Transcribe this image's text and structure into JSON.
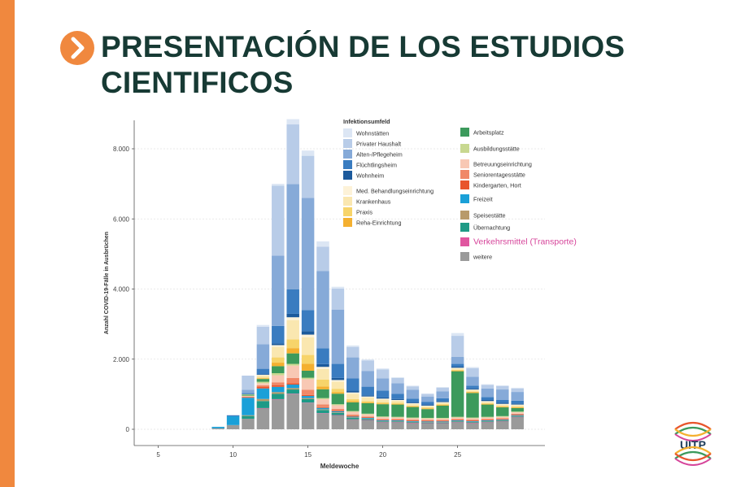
{
  "slide": {
    "title_line1": "PRESENTACIÓN DE LOS ESTUDIOS",
    "title_line2": "CIENTIFICOS",
    "logo_text": "UITP",
    "accent_color": "#f0883e",
    "title_color": "#173a34"
  },
  "chart_data": {
    "type": "bar",
    "stacked": true,
    "title": "",
    "xlabel": "Meldewoche",
    "ylabel": "Anzahl COVID-19-Fälle in Ausbrüchen",
    "ylim": [
      0,
      8500
    ],
    "xlim": [
      3.5,
      30
    ],
    "x_ticks": [
      "5",
      "10",
      "15",
      "20",
      "25"
    ],
    "y_ticks": [
      "0",
      "2.000",
      "4.000",
      "6.000",
      "8.000"
    ],
    "legend_placement": "inside-top",
    "legend_header": "Infektionsumfeld",
    "categories": [
      5,
      6,
      7,
      8,
      9,
      10,
      11,
      12,
      13,
      14,
      15,
      16,
      17,
      18,
      19,
      20,
      21,
      22,
      23,
      24,
      25,
      26,
      27,
      28,
      29
    ],
    "series": [
      {
        "name": "weitere",
        "color": "#9a9a9a",
        "values": [
          0,
          0,
          0,
          0,
          30,
          120,
          300,
          600,
          850,
          1000,
          750,
          450,
          400,
          280,
          260,
          200,
          200,
          180,
          170,
          170,
          200,
          180,
          200,
          220,
          350
        ]
      },
      {
        "name": "Verkehrsmittel (Transporte)",
        "color": "#e056a0",
        "values": [
          0,
          0,
          0,
          0,
          0,
          0,
          0,
          5,
          10,
          15,
          10,
          10,
          5,
          5,
          5,
          5,
          5,
          5,
          5,
          5,
          5,
          5,
          5,
          5,
          5
        ]
      },
      {
        "name": "Übernachtung",
        "color": "#1e9a86",
        "values": [
          0,
          0,
          0,
          0,
          0,
          0,
          80,
          200,
          150,
          120,
          100,
          90,
          60,
          40,
          30,
          20,
          20,
          20,
          20,
          20,
          20,
          20,
          20,
          20,
          20
        ]
      },
      {
        "name": "Speisestätte",
        "color": "#b89a6a",
        "values": [
          0,
          0,
          0,
          0,
          0,
          0,
          20,
          60,
          50,
          40,
          30,
          20,
          20,
          15,
          10,
          10,
          10,
          10,
          10,
          10,
          10,
          10,
          10,
          10,
          10
        ]
      },
      {
        "name": "Freizeit",
        "color": "#1aa0d8",
        "values": [
          0,
          0,
          0,
          0,
          40,
          250,
          500,
          300,
          150,
          100,
          60,
          40,
          30,
          20,
          20,
          20,
          20,
          20,
          20,
          20,
          20,
          20,
          20,
          20,
          20
        ]
      },
      {
        "name": "Kindergarten, Hort",
        "color": "#e8552c",
        "values": [
          0,
          0,
          0,
          0,
          0,
          0,
          20,
          50,
          50,
          40,
          30,
          20,
          20,
          20,
          20,
          20,
          20,
          20,
          20,
          20,
          20,
          20,
          20,
          20,
          20
        ]
      },
      {
        "name": "Seniorentagesstätte",
        "color": "#f08868",
        "values": [
          0,
          0,
          0,
          0,
          0,
          0,
          10,
          40,
          80,
          150,
          150,
          80,
          50,
          40,
          20,
          20,
          20,
          20,
          20,
          20,
          20,
          20,
          20,
          20,
          20
        ]
      },
      {
        "name": "Betreuungseinrichtung",
        "color": "#f8c8b4",
        "values": [
          0,
          0,
          0,
          0,
          0,
          0,
          20,
          60,
          200,
          350,
          300,
          150,
          100,
          80,
          60,
          50,
          40,
          40,
          40,
          40,
          40,
          40,
          40,
          40,
          40
        ]
      },
      {
        "name": "Ausbildungsstätte",
        "color": "#c8d890",
        "values": [
          0,
          0,
          0,
          0,
          0,
          0,
          10,
          40,
          60,
          50,
          40,
          30,
          30,
          20,
          20,
          20,
          20,
          20,
          20,
          20,
          20,
          20,
          20,
          20,
          20
        ]
      },
      {
        "name": "Arbeitsplatz",
        "color": "#3c9a5c",
        "values": [
          0,
          0,
          0,
          0,
          0,
          0,
          30,
          80,
          200,
          300,
          200,
          250,
          300,
          250,
          300,
          350,
          350,
          300,
          250,
          350,
          1300,
          700,
          350,
          250,
          100
        ]
      },
      {
        "name": "Reha-Einrichtung",
        "color": "#f4b030",
        "values": [
          0,
          0,
          0,
          0,
          0,
          0,
          0,
          20,
          100,
          150,
          200,
          80,
          40,
          30,
          20,
          20,
          20,
          20,
          20,
          20,
          20,
          20,
          20,
          20,
          20
        ]
      },
      {
        "name": "Praxis",
        "color": "#f7d46a",
        "values": [
          0,
          0,
          0,
          0,
          0,
          0,
          0,
          20,
          150,
          250,
          250,
          200,
          100,
          60,
          40,
          30,
          30,
          20,
          20,
          20,
          20,
          20,
          20,
          20,
          20
        ]
      },
      {
        "name": "Krankenhaus",
        "color": "#fae7b0",
        "values": [
          0,
          0,
          0,
          0,
          0,
          0,
          10,
          60,
          300,
          550,
          500,
          300,
          200,
          150,
          100,
          80,
          60,
          50,
          40,
          40,
          40,
          40,
          40,
          40,
          40
        ]
      },
      {
        "name": "Med. Behandlungseinrichtung",
        "color": "#fdf2d8",
        "values": [
          0,
          0,
          0,
          0,
          0,
          0,
          0,
          20,
          50,
          80,
          80,
          60,
          50,
          40,
          30,
          30,
          20,
          20,
          20,
          20,
          20,
          20,
          20,
          20,
          20
        ]
      },
      {
        "name": "Wohnheim",
        "color": "#1c5a9c",
        "values": [
          0,
          0,
          0,
          0,
          0,
          0,
          0,
          20,
          50,
          100,
          100,
          80,
          60,
          50,
          30,
          30,
          30,
          30,
          30,
          30,
          30,
          30,
          30,
          30,
          30
        ]
      },
      {
        "name": "Flüchtlingsheim",
        "color": "#3a7cc0",
        "values": [
          0,
          0,
          0,
          0,
          0,
          30,
          30,
          150,
          500,
          700,
          600,
          450,
          400,
          350,
          250,
          200,
          150,
          100,
          80,
          80,
          80,
          80,
          80,
          80,
          80
        ]
      },
      {
        "name": "Alten-/Pflegeheim",
        "color": "#86aad8",
        "values": [
          0,
          0,
          0,
          0,
          0,
          0,
          100,
          700,
          2000,
          3000,
          3200,
          2200,
          1550,
          600,
          450,
          350,
          300,
          250,
          150,
          200,
          200,
          250,
          250,
          300,
          250
        ]
      },
      {
        "name": "Privater Haushalt",
        "color": "#b8cce8",
        "values": [
          0,
          0,
          0,
          0,
          0,
          0,
          400,
          500,
          2000,
          1700,
          1200,
          700,
          600,
          300,
          300,
          250,
          150,
          100,
          70,
          100,
          600,
          250,
          100,
          100,
          100
        ]
      },
      {
        "name": "Wohnstätten",
        "color": "#dce6f4",
        "values": [
          0,
          0,
          0,
          0,
          0,
          0,
          0,
          50,
          50,
          150,
          150,
          150,
          50,
          40,
          30,
          30,
          20,
          20,
          20,
          20,
          80,
          30,
          20,
          20,
          20
        ]
      }
    ],
    "legend": {
      "col1": [
        "Wohnstätten",
        "Privater Haushalt",
        "Alten-/Pflegeheim",
        "Flüchtlingsheim",
        "Wohnheim"
      ],
      "col2": [
        "Med. Behandlungseinrichtung",
        "Krankenhaus",
        "Praxis",
        "Reha-Einrichtung"
      ],
      "col3": [
        "Arbeitsplatz",
        "Ausbildungsstätte",
        "Betreuungseinrichtung",
        "Seniorentagesstätte",
        "Kindergarten, Hort",
        "Freizeit",
        "Speisestätte",
        "Übernachtung",
        "Verkehrsmittel (Transporte)",
        "weitere"
      ],
      "highlight": "Verkehrsmittel (Transporte)",
      "highlight_color": "#d6449a"
    }
  }
}
